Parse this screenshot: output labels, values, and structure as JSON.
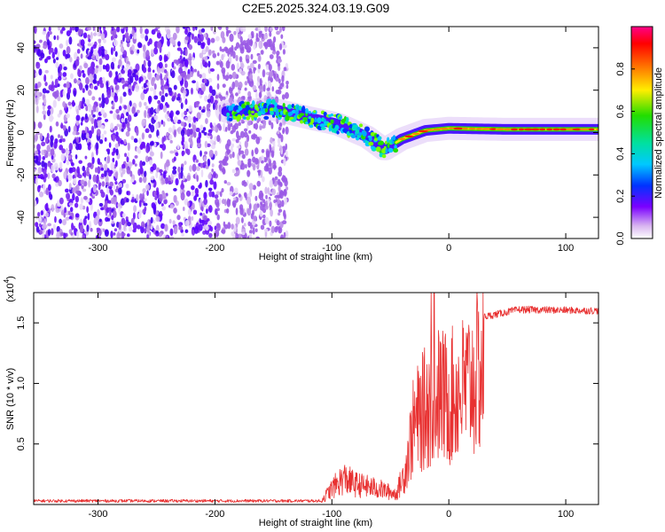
{
  "title": "C2E5.2025.324.03.19.G09",
  "chart_data": [
    {
      "type": "heatmap",
      "xlabel": "Height of straight line (km)",
      "ylabel": "Frequency (Hz)",
      "xlim": [
        -355,
        128
      ],
      "ylim": [
        -50,
        50
      ],
      "xticks": [
        -300,
        -200,
        -100,
        0,
        100
      ],
      "yticks": [
        -40,
        -20,
        0,
        20,
        40
      ],
      "colorbar": {
        "label": "Normalized spectral amplitude",
        "range": [
          0,
          1
        ],
        "ticks": [
          0.0,
          0.2,
          0.4,
          0.6,
          0.8
        ]
      },
      "features": {
        "noise_region_x": [
          -355,
          -138
        ],
        "signal_start_x": -190,
        "signal_track": [
          {
            "x": -190,
            "f": 10
          },
          {
            "x": -150,
            "f": 11
          },
          {
            "x": -120,
            "f": 7
          },
          {
            "x": -95,
            "f": 4
          },
          {
            "x": -70,
            "f": -2
          },
          {
            "x": -55,
            "f": -8
          },
          {
            "x": -40,
            "f": -3
          },
          {
            "x": -20,
            "f": 1
          },
          {
            "x": 0,
            "f": 2
          },
          {
            "x": 50,
            "f": 1.5
          },
          {
            "x": 128,
            "f": 1.5
          }
        ]
      }
    },
    {
      "type": "line",
      "xlabel": "Height of straight line (km)",
      "ylabel": "SNR (10 * v/v)",
      "scale_label": "(x10",
      "scale_exp": "4",
      "scale_close": ")",
      "xlim": [
        -355,
        128
      ],
      "ylim": [
        0,
        17500
      ],
      "xticks": [
        -300,
        -200,
        -100,
        0,
        100
      ],
      "yticks": [
        5000,
        10000,
        15000
      ],
      "ytick_labels": [
        "0.5",
        "1.0",
        "1.5"
      ],
      "series": [
        {
          "name": "SNR",
          "color": "#e83030",
          "envelope": [
            {
              "x": -355,
              "y": 300
            },
            {
              "x": -110,
              "y": 300
            },
            {
              "x": -100,
              "y": 1800
            },
            {
              "x": -90,
              "y": 3000
            },
            {
              "x": -80,
              "y": 2300
            },
            {
              "x": -60,
              "y": 1800
            },
            {
              "x": -45,
              "y": 1200
            },
            {
              "x": -38,
              "y": 3500
            },
            {
              "x": -30,
              "y": 9000
            },
            {
              "x": -20,
              "y": 11000
            },
            {
              "x": -10,
              "y": 12500
            },
            {
              "x": 0,
              "y": 12000
            },
            {
              "x": 15,
              "y": 13500
            },
            {
              "x": 30,
              "y": 15500
            },
            {
              "x": 60,
              "y": 16100
            },
            {
              "x": 128,
              "y": 16000
            }
          ]
        }
      ]
    }
  ]
}
